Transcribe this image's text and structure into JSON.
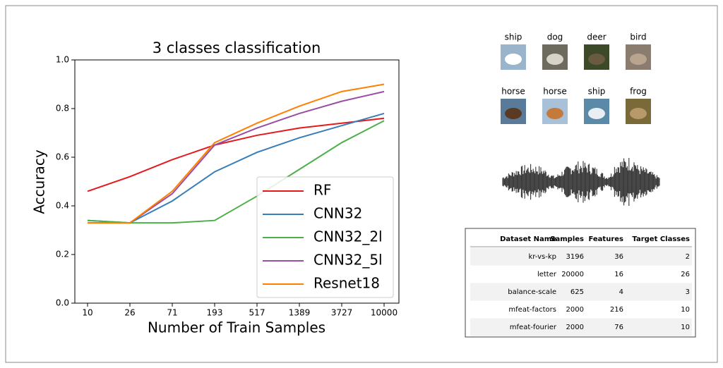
{
  "chart_data": {
    "type": "line",
    "title": "3 classes classification",
    "x_label": "Number of Train Samples",
    "y_label": "Accuracy",
    "categories": [
      "10",
      "26",
      "71",
      "193",
      "517",
      "1389",
      "3727",
      "10000"
    ],
    "series": [
      {
        "name": "RF",
        "color": "#e41a1c",
        "values": [
          0.46,
          0.52,
          0.59,
          0.65,
          0.69,
          0.72,
          0.74,
          0.76
        ]
      },
      {
        "name": "CNN32",
        "color": "#377eb8",
        "values": [
          0.34,
          0.33,
          0.42,
          0.54,
          0.62,
          0.68,
          0.73,
          0.78
        ]
      },
      {
        "name": "CNN32_2l",
        "color": "#4daf4a",
        "values": [
          0.34,
          0.33,
          0.33,
          0.34,
          0.44,
          0.55,
          0.66,
          0.75
        ]
      },
      {
        "name": "CNN32_5l",
        "color": "#984ea3",
        "values": [
          0.33,
          0.33,
          0.45,
          0.65,
          0.72,
          0.78,
          0.83,
          0.87
        ]
      },
      {
        "name": "Resnet18",
        "color": "#ff7f00",
        "values": [
          0.33,
          0.33,
          0.46,
          0.66,
          0.74,
          0.81,
          0.87,
          0.9
        ]
      }
    ],
    "ylim": [
      0,
      1
    ],
    "yticks": [
      {
        "value": 0,
        "label": "0.0"
      },
      0.2,
      0.4,
      0.6,
      0.8,
      {
        "value": 1,
        "label": "1.0"
      }
    ],
    "legend": "lower right"
  },
  "images": [
    "ship",
    "dog",
    "deer",
    "bird",
    "horse",
    "horse",
    "ship",
    "frog"
  ],
  "table": {
    "columns": [
      "Dataset Name",
      "Samples",
      "Features",
      "Target Classes"
    ],
    "rows": [
      [
        "kr-vs-kp",
        3196,
        36,
        2
      ],
      [
        "letter",
        20000,
        16,
        26
      ],
      [
        "balance-scale",
        625,
        4,
        3
      ],
      [
        "mfeat-factors",
        2000,
        216,
        10
      ],
      [
        "mfeat-fourier",
        2000,
        76,
        10
      ]
    ]
  }
}
